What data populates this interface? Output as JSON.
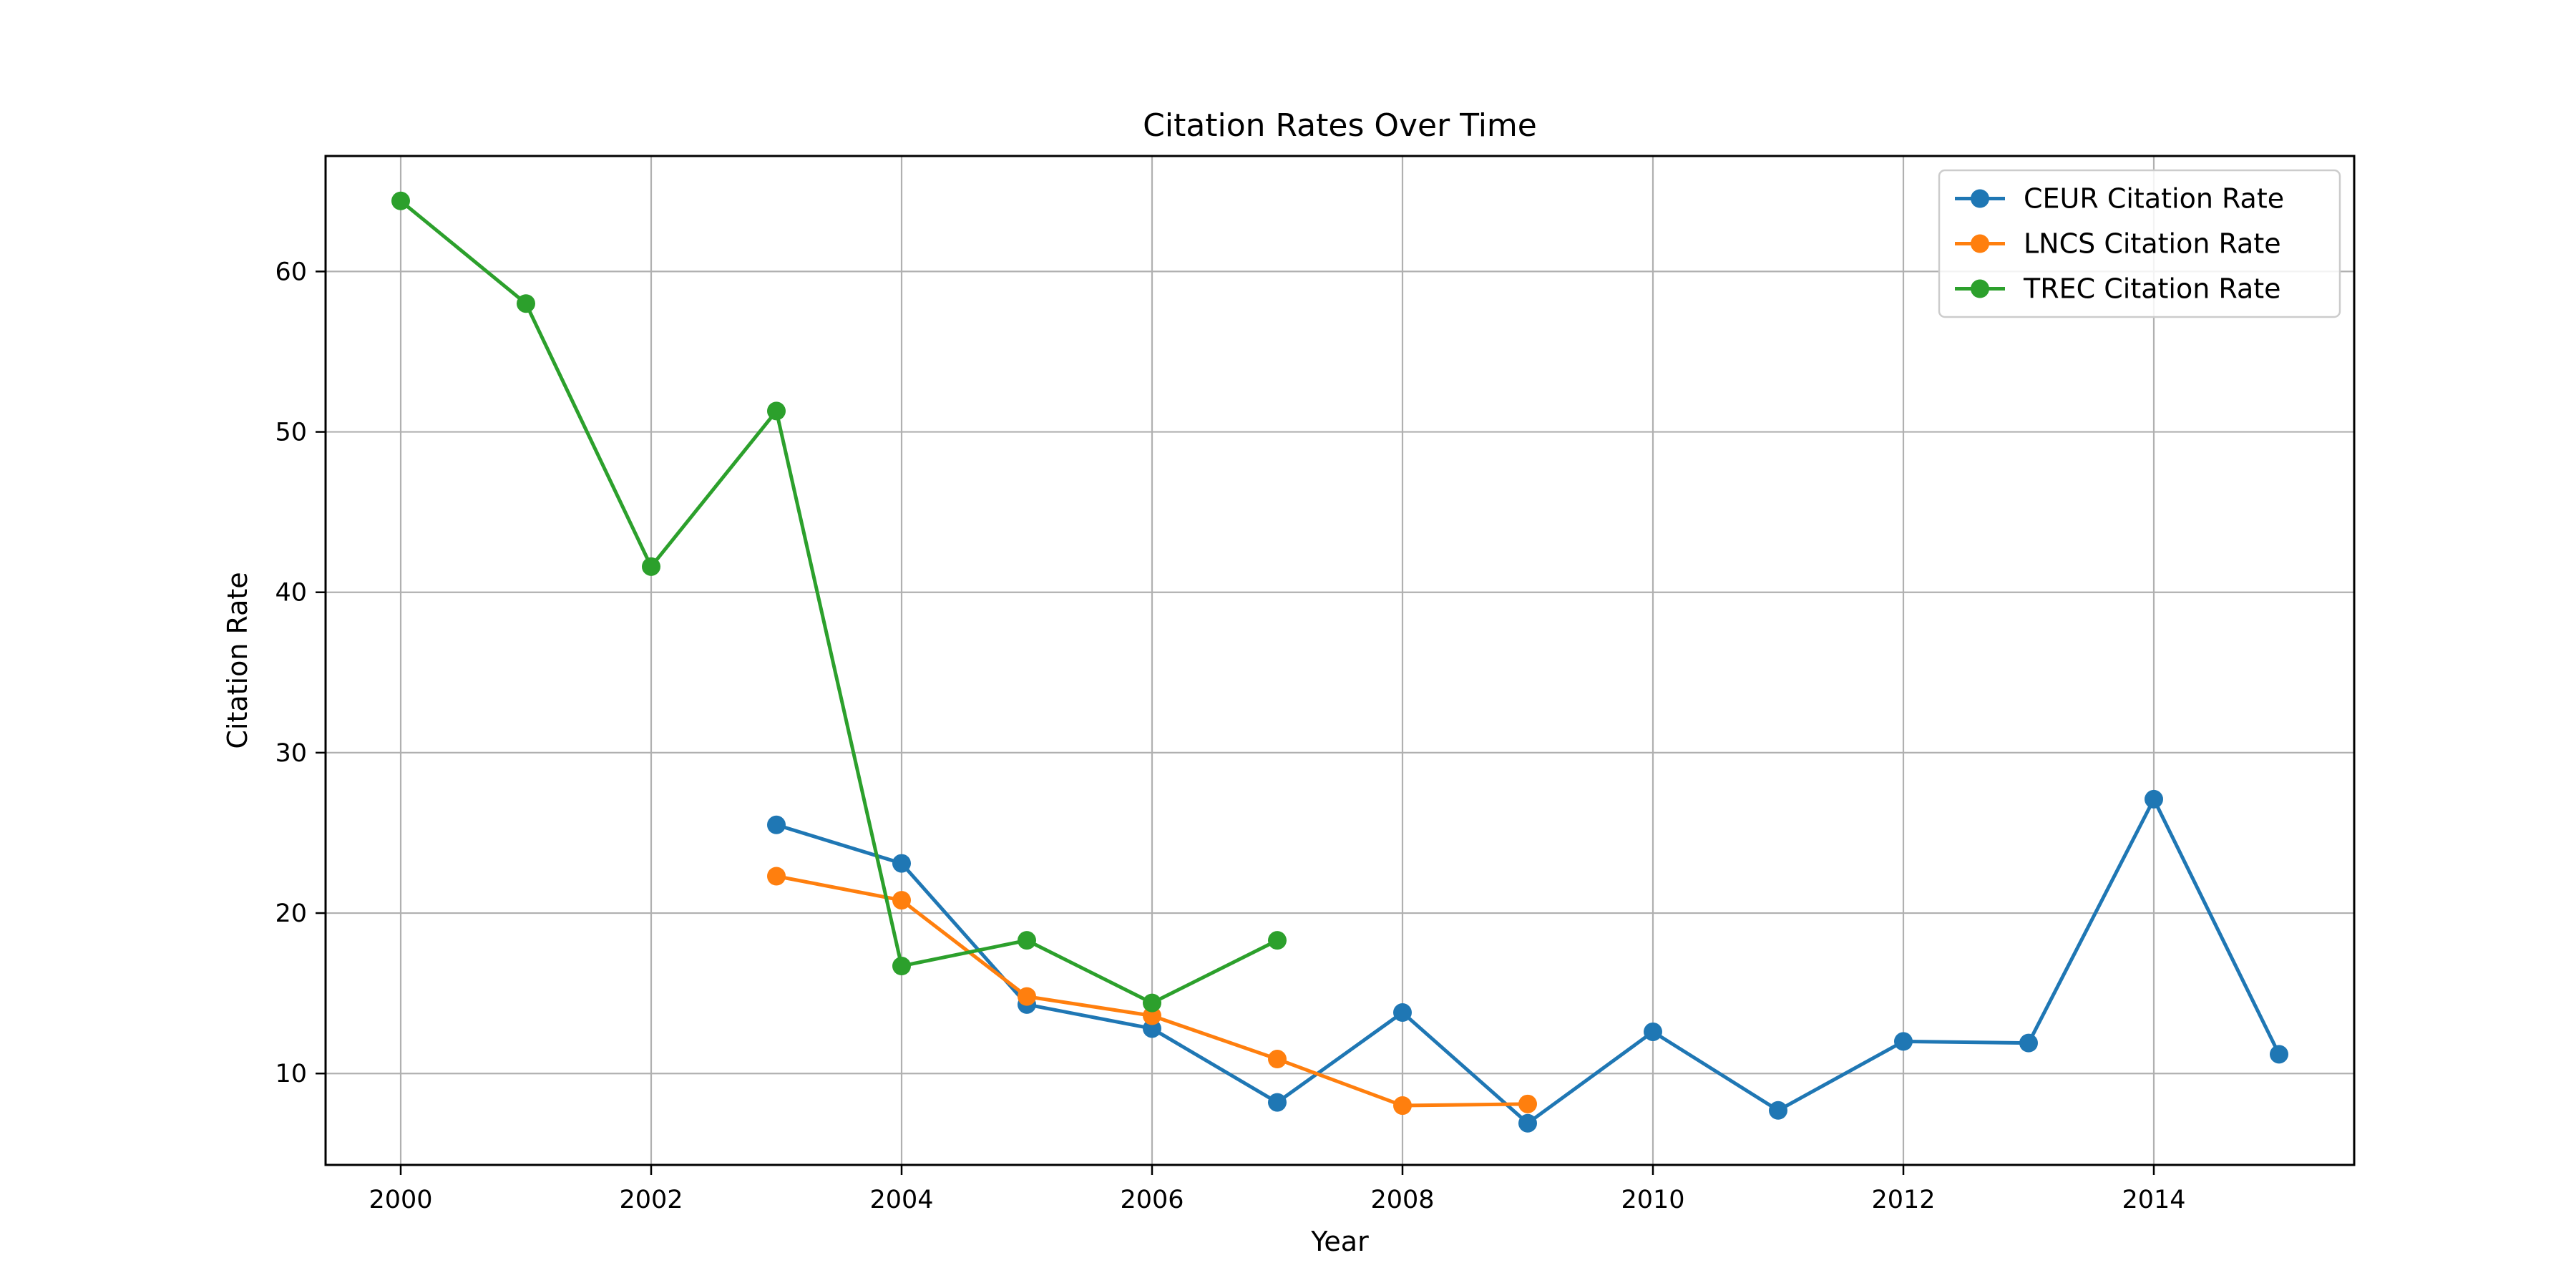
{
  "chart_data": {
    "type": "line",
    "title": "Citation Rates Over Time",
    "xlabel": "Year",
    "ylabel": "Citation Rate",
    "xlim": [
      1999.4,
      2015.6
    ],
    "ylim": [
      4.3,
      67.2
    ],
    "xticks": [
      2000,
      2002,
      2004,
      2006,
      2008,
      2010,
      2012,
      2014
    ],
    "yticks": [
      10,
      20,
      30,
      40,
      50,
      60
    ],
    "grid": true,
    "legend_position": "top-right",
    "series": [
      {
        "name": "CEUR Citation Rate",
        "color": "#1f77b4",
        "x": [
          2003,
          2004,
          2005,
          2006,
          2007,
          2008,
          2009,
          2010,
          2011,
          2012,
          2013,
          2014,
          2015
        ],
        "y": [
          25.5,
          23.1,
          14.3,
          12.8,
          8.2,
          13.8,
          6.9,
          12.6,
          7.7,
          12.0,
          11.9,
          27.1,
          11.2
        ]
      },
      {
        "name": "LNCS Citation Rate",
        "color": "#ff7f0e",
        "x": [
          2003,
          2004,
          2005,
          2006,
          2007,
          2008,
          2009
        ],
        "y": [
          22.3,
          20.8,
          14.8,
          13.6,
          10.9,
          8.0,
          8.1
        ]
      },
      {
        "name": "TREC Citation Rate",
        "color": "#2ca02c",
        "x": [
          2000,
          2001,
          2002,
          2003,
          2004,
          2005,
          2006,
          2007
        ],
        "y": [
          64.4,
          58.0,
          41.6,
          51.3,
          16.7,
          18.3,
          14.4,
          18.3
        ]
      }
    ]
  }
}
